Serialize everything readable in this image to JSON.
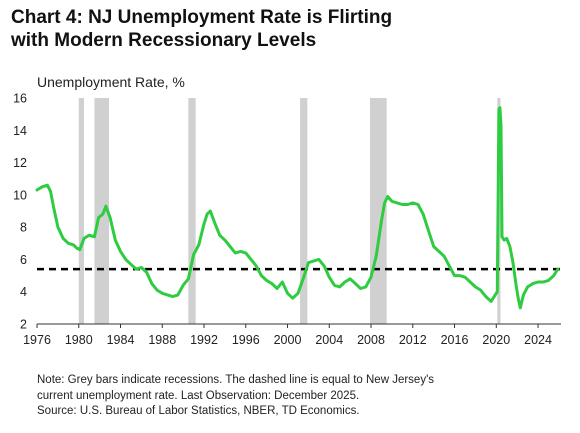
{
  "title": "Chart 4: NJ Unemployment Rate is Flirting with Modern Recessionary Levels",
  "notes": [
    "Note: Grey bars indicate recessions. The dashed line is equal to New Jersey's",
    "current unemployment rate. Last Observation: December 2025.",
    "Source: U.S. Bureau of Labor Statistics, NBER, TD Economics."
  ],
  "colors": {
    "series": "#2ecc40",
    "recession": "#d0d0d0",
    "reference_line": "#000000",
    "axis": "#333333"
  },
  "chart_data": {
    "type": "line",
    "title": "Chart 4: NJ Unemployment Rate is Flirting with Modern Recessionary Levels",
    "ylabel": "Unemployment Rate, %",
    "xlabel": "",
    "xlim": [
      1976,
      2026.2
    ],
    "ylim": [
      2,
      16
    ],
    "x_ticks": [
      1976,
      1980,
      1984,
      1988,
      1992,
      1996,
      2000,
      2004,
      2008,
      2012,
      2016,
      2020,
      2024
    ],
    "y_ticks": [
      2,
      4,
      6,
      8,
      10,
      12,
      14,
      16
    ],
    "grid": false,
    "legend": "none",
    "reference_line": {
      "y": 5.4,
      "style": "dashed"
    },
    "recessions": [
      [
        1980.0,
        1980.5
      ],
      [
        1981.5,
        1982.9
      ],
      [
        1990.5,
        1991.2
      ],
      [
        2001.2,
        2001.9
      ],
      [
        2007.9,
        2009.5
      ],
      [
        2020.1,
        2020.4
      ]
    ],
    "series": [
      {
        "x": [
          1976.0,
          1976.5,
          1977.0,
          1977.3,
          1977.6,
          1978.0,
          1978.5,
          1979.0,
          1979.5,
          1979.8,
          1980.1,
          1980.5,
          1981.0,
          1981.5,
          1981.9,
          1982.3,
          1982.6,
          1983.0,
          1983.5,
          1984.0,
          1984.5,
          1985.0,
          1985.5,
          1986.0,
          1986.5,
          1987.0,
          1987.5,
          1988.0,
          1988.5,
          1989.0,
          1989.5,
          1990.0,
          1990.5,
          1991.0,
          1991.5,
          1992.0,
          1992.3,
          1992.6,
          1993.0,
          1993.5,
          1994.0,
          1994.5,
          1995.0,
          1995.5,
          1996.0,
          1996.5,
          1997.0,
          1997.5,
          1998.0,
          1998.5,
          1999.0,
          1999.5,
          2000.0,
          2000.5,
          2001.0,
          2001.5,
          2002.0,
          2002.5,
          2003.0,
          2003.5,
          2004.0,
          2004.5,
          2005.0,
          2005.5,
          2006.0,
          2006.5,
          2007.0,
          2007.5,
          2008.0,
          2008.5,
          2009.0,
          2009.3,
          2009.6,
          2010.0,
          2010.5,
          2011.0,
          2011.5,
          2012.0,
          2012.5,
          2013.0,
          2013.5,
          2014.0,
          2014.5,
          2015.0,
          2015.5,
          2016.0,
          2016.5,
          2017.0,
          2017.5,
          2018.0,
          2018.5,
          2019.0,
          2019.5,
          2019.9,
          2020.1,
          2020.25,
          2020.35,
          2020.45,
          2020.55,
          2020.75,
          2021.0,
          2021.3,
          2021.6,
          2021.9,
          2022.1,
          2022.3,
          2022.6,
          2023.0,
          2023.5,
          2024.0,
          2024.5,
          2025.0,
          2025.5,
          2025.9
        ],
        "values": [
          10.3,
          10.5,
          10.6,
          10.2,
          9.2,
          8.0,
          7.3,
          7.0,
          6.9,
          6.7,
          6.6,
          7.3,
          7.5,
          7.4,
          8.6,
          8.8,
          9.3,
          8.6,
          7.2,
          6.5,
          6.0,
          5.7,
          5.4,
          5.5,
          5.2,
          4.5,
          4.1,
          3.9,
          3.8,
          3.7,
          3.8,
          4.4,
          4.8,
          6.3,
          6.9,
          8.2,
          8.8,
          9.0,
          8.3,
          7.5,
          7.2,
          6.8,
          6.4,
          6.5,
          6.4,
          6.0,
          5.6,
          5.0,
          4.7,
          4.5,
          4.2,
          4.6,
          3.9,
          3.6,
          3.9,
          4.8,
          5.8,
          5.9,
          6.0,
          5.6,
          4.9,
          4.4,
          4.3,
          4.6,
          4.8,
          4.5,
          4.2,
          4.3,
          4.9,
          6.2,
          8.4,
          9.5,
          9.9,
          9.6,
          9.5,
          9.4,
          9.4,
          9.5,
          9.4,
          8.8,
          7.8,
          6.8,
          6.5,
          6.2,
          5.6,
          5.0,
          5.0,
          4.9,
          4.6,
          4.3,
          4.1,
          3.7,
          3.4,
          3.8,
          4.0,
          15.3,
          15.4,
          14.3,
          7.4,
          7.2,
          7.3,
          6.8,
          5.8,
          4.4,
          3.6,
          3.0,
          3.8,
          4.3,
          4.5,
          4.6,
          4.6,
          4.7,
          5.0,
          5.4
        ]
      }
    ]
  }
}
